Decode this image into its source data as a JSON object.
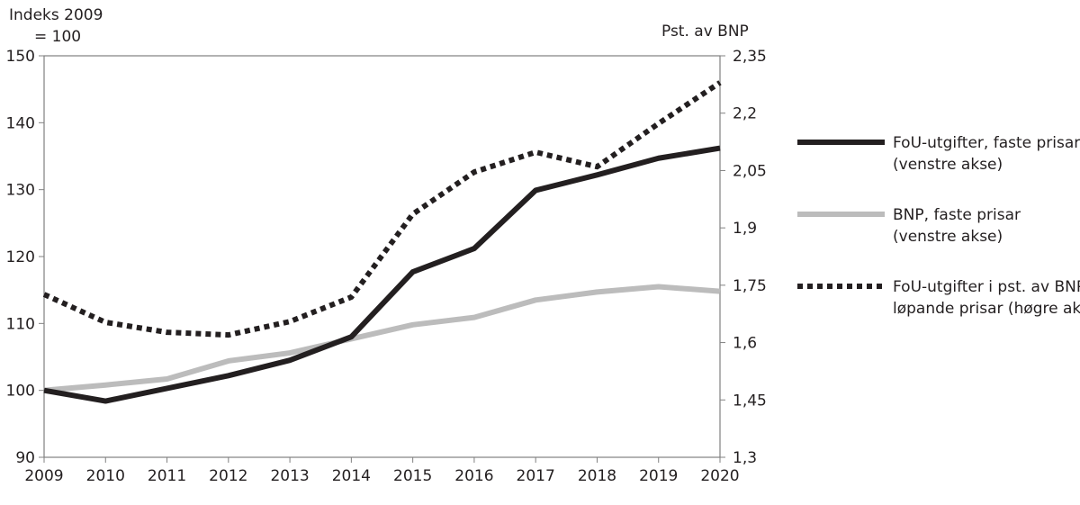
{
  "chart_data": {
    "type": "line",
    "left_axis_label": "Indeks 2009 = 100",
    "left_axis_label_lines": [
      "Indeks 2009",
      "= 100"
    ],
    "right_axis_label": "Pst. av BNP",
    "x": [
      "2009",
      "2010",
      "2011",
      "2012",
      "2013",
      "2014",
      "2015",
      "2016",
      "2017",
      "2018",
      "2019",
      "2020"
    ],
    "ylim_left": [
      90,
      150
    ],
    "yticks_left": [
      "90",
      "100",
      "110",
      "120",
      "130",
      "140",
      "150"
    ],
    "ylim_right": [
      1.3,
      2.35
    ],
    "yticks_right": [
      "1,3",
      "1,45",
      "1,6",
      "1,75",
      "1,9",
      "2,05",
      "2,2",
      "2,35"
    ],
    "grid": false,
    "legend_position": "right",
    "series": [
      {
        "name": "FoU-utgifter, faste prisar (venstre akse)",
        "legend_lines": [
          "FoU-utgifter, faste prisar",
          "(venstre akse)"
        ],
        "axis": "left",
        "color": "#231f20",
        "style": "solid",
        "values": [
          100,
          98.4,
          100.3,
          102.2,
          104.5,
          108.0,
          117.7,
          121.2,
          129.9,
          132.2,
          134.7,
          136.2
        ]
      },
      {
        "name": "BNP, faste prisar (venstre akse)",
        "legend_lines": [
          "BNP, faste prisar",
          "(venstre akse)"
        ],
        "axis": "left",
        "color": "#bcbcbc",
        "style": "solid",
        "values": [
          100,
          100.8,
          101.7,
          104.4,
          105.6,
          107.7,
          109.8,
          110.9,
          113.5,
          114.7,
          115.5,
          114.8
        ]
      },
      {
        "name": "FoU-utgifter i pst. av BNP, løpande prisar (høgre akse)",
        "legend_lines": [
          "FoU-utgifter i pst. av BNP,",
          "løpande prisar (høgre akse)"
        ],
        "axis": "right",
        "color": "#231f20",
        "style": "dotted",
        "values": [
          1.726,
          1.653,
          1.627,
          1.62,
          1.655,
          1.719,
          1.936,
          2.046,
          2.098,
          2.06,
          2.173,
          2.28
        ]
      }
    ]
  }
}
